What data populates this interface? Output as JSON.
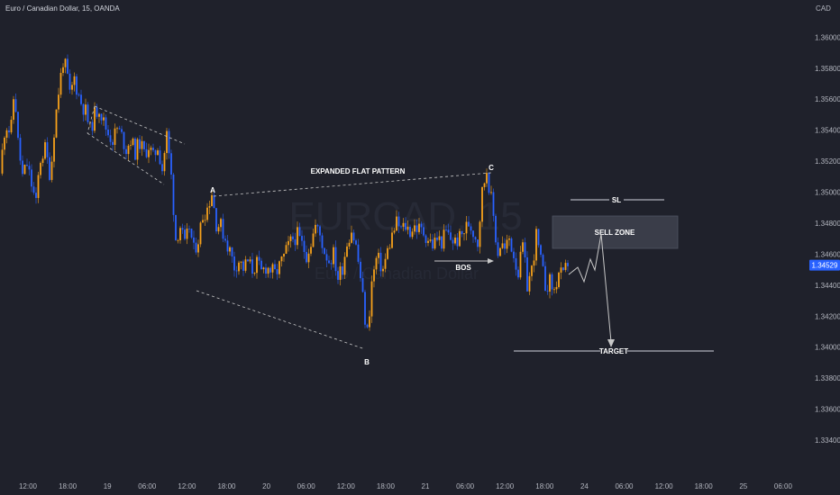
{
  "header": {
    "symbol_title": "Euro / Canadian Dollar, 15, OANDA",
    "currency": "CAD"
  },
  "watermark": {
    "symbol": "EURCAD, 15",
    "name": "Euro / Canadian Dollar"
  },
  "colors": {
    "background": "#1f212b",
    "up": "#f7a21b",
    "down": "#2962ff",
    "price_badge": "#2962ff",
    "annotation": "#c8c8c8"
  },
  "price_tag": "1.34529",
  "chart_data": {
    "type": "candlestick",
    "title": "Euro / Canadian Dollar, 15, OANDA",
    "ylabel": "CAD",
    "ylim": [
      1.3322,
      1.3624
    ],
    "y_ticks": [
      "1.33400",
      "1.33600",
      "1.33800",
      "1.34000",
      "1.34200",
      "1.34400",
      "1.34600",
      "1.34800",
      "1.35000",
      "1.35200",
      "1.35400",
      "1.35600",
      "1.35800",
      "1.36000"
    ],
    "x_ticks": [
      "12:00",
      "18:00",
      "19",
      "06:00",
      "12:00",
      "18:00",
      "20",
      "06:00",
      "12:00",
      "18:00",
      "21",
      "06:00",
      "12:00",
      "18:00",
      "24",
      "06:00",
      "12:00",
      "18:00",
      "25",
      "06:00"
    ],
    "last_price": 1.34529,
    "price_path": [
      [
        0,
        1.3512
      ],
      [
        6,
        1.3545
      ],
      [
        12,
        1.3538
      ],
      [
        16,
        1.3568
      ],
      [
        20,
        1.3532
      ],
      [
        25,
        1.351
      ],
      [
        30,
        1.3518
      ],
      [
        35,
        1.3505
      ],
      [
        40,
        1.3492
      ],
      [
        44,
        1.352
      ],
      [
        50,
        1.3528
      ],
      [
        56,
        1.351
      ],
      [
        60,
        1.354
      ],
      [
        65,
        1.3565
      ],
      [
        70,
        1.3585
      ],
      [
        74,
        1.3578
      ],
      [
        78,
        1.356
      ],
      [
        82,
        1.3575
      ],
      [
        86,
        1.3565
      ],
      [
        90,
        1.3558
      ],
      [
        95,
        1.3552
      ],
      [
        100,
        1.354
      ],
      [
        105,
        1.355
      ],
      [
        110,
        1.3555
      ],
      [
        115,
        1.3545
      ],
      [
        120,
        1.3538
      ],
      [
        125,
        1.3534
      ],
      [
        130,
        1.3541
      ],
      [
        135,
        1.3536
      ],
      [
        140,
        1.3528
      ],
      [
        145,
        1.3534
      ],
      [
        150,
        1.3526
      ],
      [
        155,
        1.3532
      ],
      [
        160,
        1.3525
      ],
      [
        165,
        1.353
      ],
      [
        170,
        1.3522
      ],
      [
        175,
        1.353
      ],
      [
        180,
        1.3515
      ],
      [
        185,
        1.3537
      ],
      [
        190,
        1.351
      ],
      [
        195,
        1.347
      ],
      [
        200,
        1.3478
      ],
      [
        205,
        1.3465
      ],
      [
        210,
        1.3478
      ],
      [
        215,
        1.3462
      ],
      [
        220,
        1.347
      ],
      [
        225,
        1.3485
      ],
      [
        230,
        1.349
      ],
      [
        235,
        1.35
      ],
      [
        240,
        1.348
      ],
      [
        245,
        1.3478
      ],
      [
        250,
        1.347
      ],
      [
        255,
        1.3462
      ],
      [
        260,
        1.3452
      ],
      [
        265,
        1.3456
      ],
      [
        270,
        1.3451
      ],
      [
        275,
        1.3455
      ],
      [
        280,
        1.345
      ],
      [
        285,
        1.3454
      ],
      [
        290,
        1.3448
      ],
      [
        295,
        1.3452
      ],
      [
        300,
        1.345
      ],
      [
        305,
        1.3447
      ],
      [
        310,
        1.3452
      ],
      [
        315,
        1.3458
      ],
      [
        320,
        1.3465
      ],
      [
        325,
        1.347
      ],
      [
        330,
        1.3472
      ],
      [
        335,
        1.3466
      ],
      [
        340,
        1.346
      ],
      [
        345,
        1.3468
      ],
      [
        350,
        1.3478
      ],
      [
        355,
        1.3472
      ],
      [
        360,
        1.3462
      ],
      [
        365,
        1.3456
      ],
      [
        370,
        1.346
      ],
      [
        375,
        1.3445
      ],
      [
        380,
        1.3452
      ],
      [
        385,
        1.3468
      ],
      [
        390,
        1.3476
      ],
      [
        395,
        1.3465
      ],
      [
        400,
        1.3445
      ],
      [
        405,
        1.3418
      ],
      [
        408,
        1.3408
      ],
      [
        412,
        1.344
      ],
      [
        418,
        1.3458
      ],
      [
        425,
        1.345
      ],
      [
        430,
        1.3462
      ],
      [
        435,
        1.3472
      ],
      [
        440,
        1.348
      ],
      [
        445,
        1.3476
      ],
      [
        450,
        1.3478
      ],
      [
        455,
        1.3475
      ],
      [
        460,
        1.3478
      ],
      [
        465,
        1.3476
      ],
      [
        470,
        1.3474
      ],
      [
        475,
        1.347
      ],
      [
        480,
        1.3466
      ],
      [
        485,
        1.347
      ],
      [
        490,
        1.3468
      ],
      [
        495,
        1.3474
      ],
      [
        500,
        1.347
      ],
      [
        505,
        1.3468
      ],
      [
        510,
        1.347
      ],
      [
        515,
        1.3475
      ],
      [
        520,
        1.348
      ],
      [
        525,
        1.3475
      ],
      [
        530,
        1.3468
      ],
      [
        535,
        1.35
      ],
      [
        540,
        1.3515
      ],
      [
        545,
        1.3495
      ],
      [
        548,
        1.3482
      ],
      [
        552,
        1.346
      ],
      [
        556,
        1.3468
      ],
      [
        560,
        1.3462
      ],
      [
        565,
        1.347
      ],
      [
        570,
        1.346
      ],
      [
        575,
        1.3448
      ],
      [
        580,
        1.3465
      ],
      [
        585,
        1.344
      ],
      [
        590,
        1.345
      ],
      [
        595,
        1.3472
      ],
      [
        600,
        1.3455
      ],
      [
        605,
        1.344
      ],
      [
        610,
        1.3442
      ],
      [
        615,
        1.3436
      ],
      [
        620,
        1.3448
      ],
      [
        625,
        1.3445
      ],
      [
        630,
        1.3455
      ]
    ],
    "annotations": {
      "pattern_label": "EXPANDED FLAT PATTERN",
      "point_a": "A",
      "point_b": "B",
      "point_c": "C",
      "bos_label": "BOS",
      "sell_zone_label": "SELL ZONE",
      "sl_label": "SL",
      "target_label": "TARGET",
      "sell_zone": [
        1.347,
        1.3486
      ],
      "sl_level": 1.3501,
      "target_level": 1.3408,
      "bos_level": 1.3465
    }
  }
}
